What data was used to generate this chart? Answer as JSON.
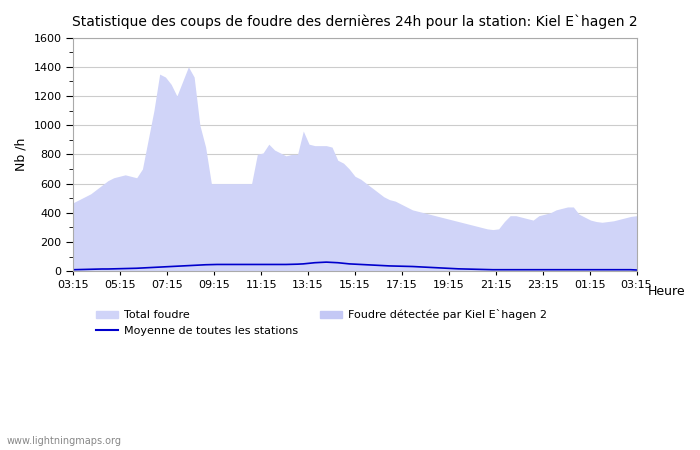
{
  "title": "Statistique des coups de foudre des dernières 24h pour la station: Kiel E`hagen 2",
  "xlabel": "Heure",
  "ylabel": "Nb /h",
  "xlim_labels": [
    "03:15",
    "05:15",
    "07:15",
    "09:15",
    "11:15",
    "13:15",
    "15:15",
    "17:15",
    "19:15",
    "21:15",
    "23:15",
    "01:15",
    "03:15"
  ],
  "ylim": [
    0,
    1600
  ],
  "yticks": [
    0,
    200,
    400,
    600,
    800,
    1000,
    1200,
    1400,
    1600
  ],
  "bg_color": "#ffffff",
  "plot_bg_color": "#ffffff",
  "grid_color": "#cccccc",
  "fill_color_total": "#d0d4f8",
  "fill_color_station": "#c4c8f5",
  "line_color_moyenne": "#0000cc",
  "watermark": "www.lightningmaps.org",
  "legend_total": "Total foudre",
  "legend_moyenne": "Moyenne de toutes les stations",
  "legend_station": "Foudre détectée par Kiel E`hagen 2",
  "total_foudre": [
    470,
    490,
    510,
    530,
    560,
    590,
    620,
    640,
    650,
    660,
    650,
    640,
    700,
    900,
    1100,
    1350,
    1330,
    1280,
    1200,
    1300,
    1400,
    1330,
    1000,
    850,
    600,
    600,
    600,
    600,
    600,
    600,
    600,
    600,
    800,
    810,
    870,
    830,
    810,
    790,
    800,
    800,
    960,
    870,
    860,
    860,
    860,
    850,
    760,
    740,
    700,
    650,
    630,
    600,
    570,
    540,
    510,
    490,
    480,
    460,
    440,
    420,
    410,
    400,
    390,
    380,
    370,
    360,
    350,
    340,
    330,
    320,
    310,
    300,
    290,
    285,
    290,
    340,
    380,
    380,
    370,
    360,
    350,
    380,
    390,
    400,
    420,
    430,
    440,
    440,
    390,
    370,
    350,
    340,
    335,
    340,
    345,
    355,
    365,
    375,
    380
  ],
  "station_foudre": [
    0,
    0,
    0,
    0,
    0,
    0,
    0,
    0,
    0,
    0,
    0,
    0,
    0,
    0,
    0,
    0,
    0,
    0,
    0,
    0,
    0,
    0,
    0,
    0,
    0,
    0,
    0,
    0,
    0,
    0,
    0,
    0,
    0,
    0,
    0,
    0,
    0,
    0,
    0,
    0,
    0,
    0,
    0,
    0,
    0,
    0,
    0,
    0,
    0,
    0,
    0,
    0,
    0,
    0,
    0,
    0,
    0,
    0,
    0,
    0,
    0,
    0,
    0,
    0,
    0,
    0,
    0,
    0,
    0,
    0,
    0,
    0,
    0,
    0,
    0,
    0,
    0,
    0,
    0,
    0,
    0,
    0,
    0,
    0,
    0,
    0,
    0,
    0,
    0,
    0,
    0,
    0,
    0,
    0,
    0,
    0,
    0,
    0,
    0
  ],
  "moyenne": [
    10,
    11,
    12,
    13,
    14,
    15,
    15,
    16,
    17,
    18,
    19,
    20,
    22,
    24,
    26,
    28,
    30,
    32,
    34,
    36,
    38,
    40,
    42,
    44,
    45,
    46,
    46,
    46,
    46,
    46,
    46,
    46,
    46,
    46,
    46,
    46,
    46,
    46,
    47,
    48,
    50,
    54,
    58,
    60,
    62,
    60,
    58,
    54,
    50,
    48,
    46,
    44,
    42,
    40,
    38,
    36,
    35,
    34,
    33,
    32,
    30,
    28,
    26,
    24,
    22,
    20,
    18,
    16,
    15,
    14,
    13,
    12,
    11,
    10,
    10,
    10,
    10,
    10,
    10,
    10,
    10,
    10,
    10,
    10,
    10,
    10,
    10,
    10,
    10,
    10,
    10,
    10,
    10,
    10,
    10,
    10,
    10,
    10,
    8
  ]
}
